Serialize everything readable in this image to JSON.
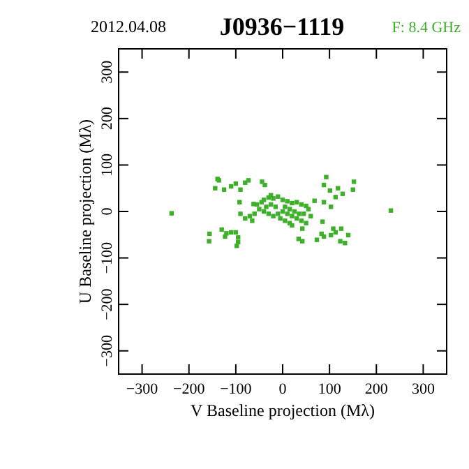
{
  "chart_data": {
    "type": "scatter",
    "title": "J0936−1119",
    "subtitle": "2012.04.08",
    "annotations": [
      "F: 8.4 GHz"
    ],
    "xlabel": "V Baseline projection (Mλ)",
    "ylabel": "U Baseline projection (Mλ)",
    "xlim": [
      -350,
      350
    ],
    "ylim": [
      -350,
      350
    ],
    "xticks": [
      -300,
      -200,
      -100,
      0,
      100,
      200,
      300
    ],
    "yticks": [
      -300,
      -200,
      -100,
      0,
      100,
      200,
      300
    ],
    "marker": "square",
    "grid": false,
    "series": [
      {
        "color": "#3cb028",
        "x": [
          -237,
          231,
          -139,
          -136,
          -144,
          -125,
          -110,
          -100,
          -90,
          -80,
          -73,
          -44,
          -38,
          -92,
          -62,
          93,
          88,
          101,
          118,
          128,
          113,
          152,
          150,
          103,
          88,
          68,
          -156,
          -157,
          -130,
          -120,
          -110,
          -100,
          -95,
          -95,
          -98,
          -123,
          34,
          42,
          73,
          88,
          103,
          113,
          125,
          108,
          140,
          133,
          123,
          83,
          42,
          85,
          -55,
          -45,
          -40,
          -30,
          -25,
          -20,
          -10,
          0,
          10,
          20,
          30,
          40,
          50,
          -50,
          -40,
          -30,
          -20,
          -10,
          0,
          10,
          20,
          30,
          40,
          50,
          -60,
          -70,
          -80,
          -65,
          -15,
          5,
          15,
          25,
          35,
          -5,
          5,
          15,
          20,
          -35,
          -25,
          45,
          55,
          60,
          -90
        ],
        "values": [
          -4,
          2,
          70,
          67,
          50,
          47,
          54,
          60,
          47,
          62,
          67,
          64,
          57,
          20,
          16,
          74,
          57,
          45,
          50,
          38,
          31,
          64,
          47,
          10,
          20,
          23,
          -48,
          -64,
          -39,
          -47,
          -45,
          -45,
          -56,
          -66,
          -74,
          -54,
          -59,
          -64,
          -61,
          -54,
          -51,
          -45,
          -37,
          -37,
          -51,
          -68,
          -64,
          -48,
          -37,
          -22,
          15,
          20,
          25,
          30,
          35,
          28,
          32,
          25,
          22,
          18,
          20,
          15,
          12,
          5,
          0,
          -5,
          -10,
          -5,
          0,
          -5,
          -10,
          -15,
          -20,
          -25,
          -5,
          -10,
          -15,
          -20,
          10,
          10,
          5,
          0,
          -5,
          -15,
          -20,
          -25,
          -30,
          10,
          15,
          -5,
          5,
          -10,
          -5
        ]
      }
    ]
  }
}
